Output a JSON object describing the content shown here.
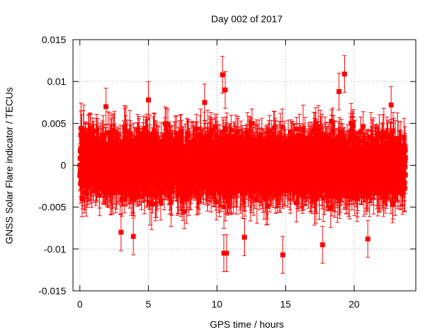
{
  "chart_data": {
    "type": "scatter",
    "title": "Day 002 of 2017",
    "xlabel": "GPS time / hours",
    "ylabel": "GNSS Solar Flare indicator / TECUs",
    "xlim": [
      -0.5,
      24.5
    ],
    "ylim": [
      -0.015,
      0.015
    ],
    "grid": true,
    "legend": "none",
    "x_ticks": [
      0,
      5,
      10,
      15,
      20
    ],
    "x_tick_labels": [
      "0",
      "5",
      "10",
      "15",
      "20"
    ],
    "y_ticks": [
      -0.015,
      -0.01,
      -0.005,
      0,
      0.005,
      0.01,
      0.015
    ],
    "y_tick_labels": [
      "-0.015",
      "-0.01",
      "-0.005",
      "0",
      "0.005",
      "0.01",
      "0.015"
    ],
    "series": [
      {
        "color": "#ff0000",
        "marker": "square",
        "error_bars": true,
        "x_start": 0.0,
        "x_end": 23.75,
        "x_step": 0.008333,
        "typical_range": [
          -0.006,
          0.006
        ],
        "typical_error": 0.0022,
        "notable_points": [
          {
            "x": 10.4,
            "y": 0.0108
          },
          {
            "x": 10.6,
            "y": 0.009
          },
          {
            "x": 10.5,
            "y": -0.0105
          },
          {
            "x": 10.7,
            "y": -0.0105
          },
          {
            "x": 14.8,
            "y": -0.0107
          },
          {
            "x": 3.9,
            "y": -0.0085
          },
          {
            "x": 3.0,
            "y": -0.008
          },
          {
            "x": 19.3,
            "y": 0.0109
          },
          {
            "x": 18.9,
            "y": 0.0088
          },
          {
            "x": 22.7,
            "y": 0.0072
          },
          {
            "x": 1.9,
            "y": 0.007
          },
          {
            "x": 12.0,
            "y": -0.0086
          },
          {
            "x": 17.7,
            "y": -0.0095
          },
          {
            "x": 21.0,
            "y": -0.0088
          },
          {
            "x": 5.0,
            "y": 0.0078
          },
          {
            "x": 9.1,
            "y": 0.0075
          }
        ]
      }
    ]
  }
}
